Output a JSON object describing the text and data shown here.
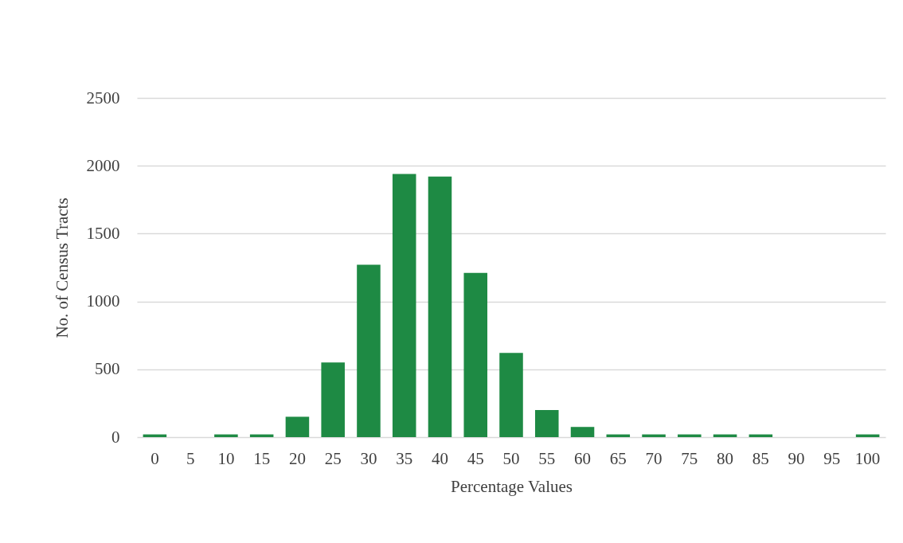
{
  "chart_data": {
    "type": "bar",
    "xlabel": "Percentage Values",
    "ylabel": "No. of Census Tracts",
    "categories": [
      "0",
      "5",
      "10",
      "15",
      "20",
      "25",
      "30",
      "35",
      "40",
      "45",
      "50",
      "55",
      "60",
      "65",
      "70",
      "75",
      "80",
      "85",
      "90",
      "95",
      "100"
    ],
    "values": [
      20,
      0,
      20,
      20,
      150,
      550,
      1270,
      1940,
      1920,
      1210,
      620,
      200,
      75,
      20,
      20,
      20,
      20,
      20,
      0,
      0,
      20
    ],
    "color": "#1e8a44",
    "ylim": [
      0,
      2500
    ],
    "yticks": [
      0,
      500,
      1000,
      1500,
      2000,
      2500
    ],
    "grid": "y"
  }
}
